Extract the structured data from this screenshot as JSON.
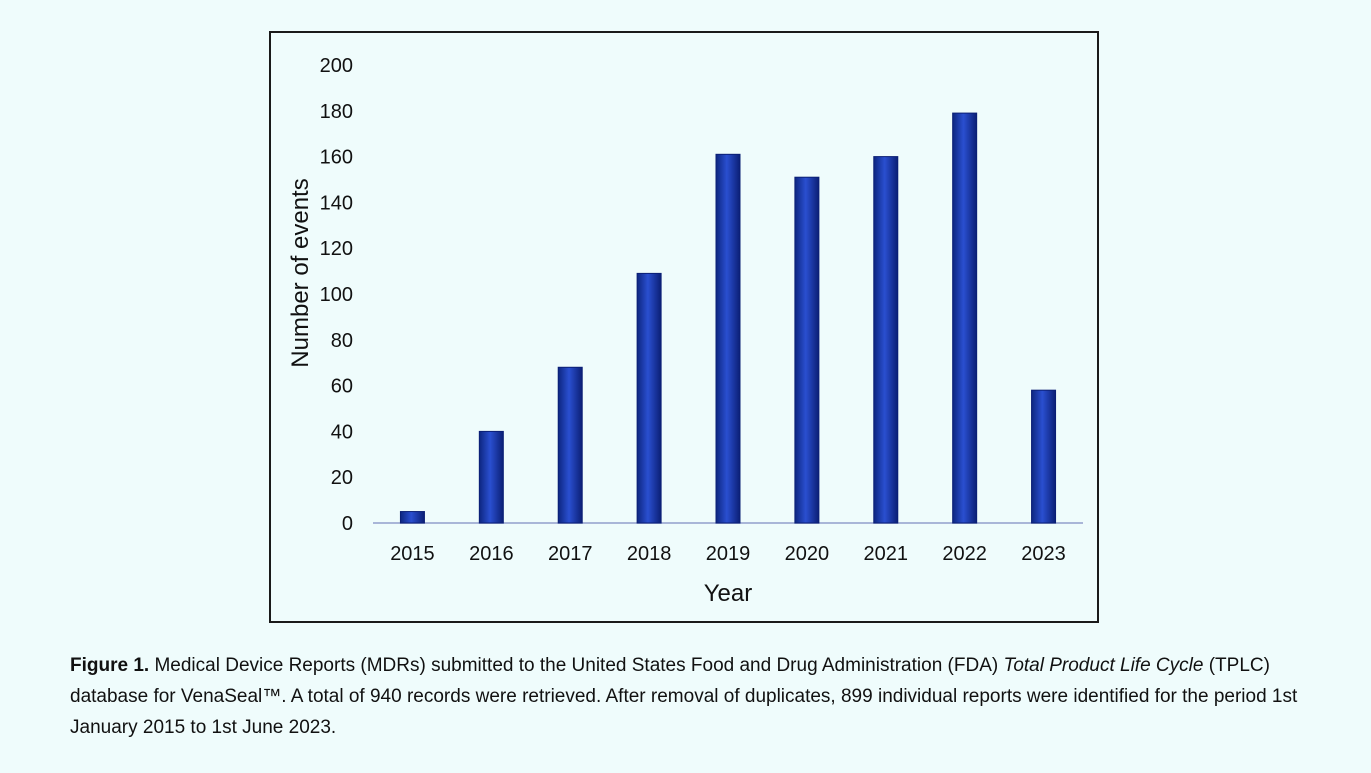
{
  "chart_data": {
    "type": "bar",
    "categories": [
      "2015",
      "2016",
      "2017",
      "2018",
      "2019",
      "2020",
      "2021",
      "2022",
      "2023"
    ],
    "values": [
      5,
      40,
      68,
      109,
      161,
      151,
      160,
      179,
      58
    ],
    "xlabel": "Year",
    "ylabel": "Number of events",
    "ylim": [
      0,
      200
    ],
    "yticks": [
      0,
      20,
      40,
      60,
      80,
      100,
      120,
      140,
      160,
      180,
      200
    ],
    "grid": false,
    "colors": {
      "bar": "#1a3aa8",
      "bar_edge": "#0b1f75",
      "baseline": "#a9b6d8"
    }
  },
  "caption": {
    "label": "Figure 1.",
    "part1": "Medical Device Reports (MDRs) submitted to the United States Food and Drug Administration (FDA)",
    "italic": "Total Product Life Cycle",
    "part2": "(TPLC) database for VenaSeal™. A total of 940 records were retrieved. After removal of duplicates, 899 individual reports were identified for the period 1st January 2015 to 1st June 2023."
  }
}
